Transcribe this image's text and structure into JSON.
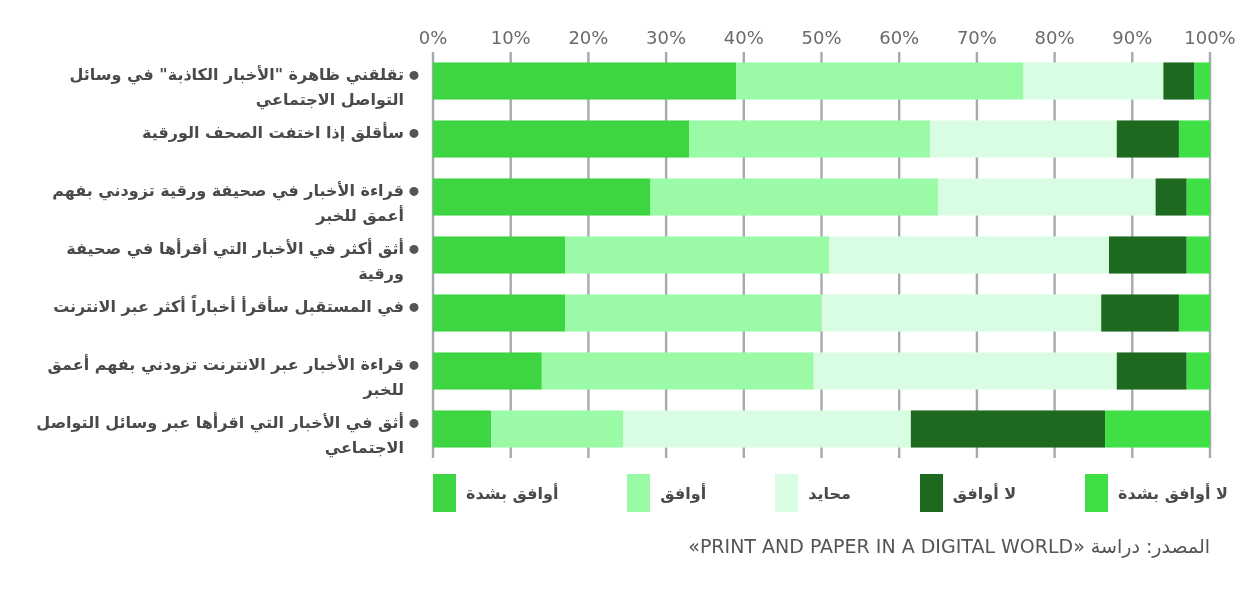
{
  "chart_data": {
    "type": "bar",
    "orientation": "horizontal",
    "stacked": true,
    "categories": [
      "تقلقني ظاهرة \"الأخبار الكاذبة\" في وسائل التواصل الاجتماعي",
      "سأقلق إذا اختفت الصحف الورقية",
      "قراءة الأخبار في صحيفة ورقية تزودني بفهم أعمق للخبر",
      "أثق أكثر في الأخبار التي أقرأها في صحيفة ورقية",
      "في المستقبل سأقرأ أخباراً أكثر عبر الانترنت",
      "قراءة الأخبار عبر الانترنت تزودني بفهم أعمق للخبر",
      "أثق في الأخبار التي اقرأها عبر وسائل التواصل الاجتماعي"
    ],
    "series": [
      {
        "name": "أوافق بشدة",
        "color": "#3dd642",
        "values": [
          39,
          33,
          28,
          17,
          17,
          14,
          7.5
        ]
      },
      {
        "name": "أوافق",
        "color": "#9afaa6",
        "values": [
          37,
          31,
          37,
          34,
          33,
          35,
          17
        ]
      },
      {
        "name": "محايد",
        "color": "#d9fde3",
        "values": [
          18,
          24,
          28,
          36,
          36,
          39,
          37
        ]
      },
      {
        "name": "لا أوافق",
        "color": "#1d6920",
        "values": [
          4,
          8,
          4,
          10,
          10,
          9,
          25
        ]
      },
      {
        "name": "لا أوافق بشدة",
        "color": "#40df46",
        "values": [
          2,
          4,
          3,
          3,
          4,
          3,
          13.5
        ]
      }
    ],
    "xlim": [
      0,
      100
    ],
    "xticks": [
      {
        "value": 0,
        "label": "0%"
      },
      {
        "value": 10,
        "label": "10%"
      },
      {
        "value": 20,
        "label": "20%"
      },
      {
        "value": 30,
        "label": "30%"
      },
      {
        "value": 40,
        "label": "40%"
      },
      {
        "value": 50,
        "label": "50%"
      },
      {
        "value": 60,
        "label": "60%"
      },
      {
        "value": 70,
        "label": "70%"
      },
      {
        "value": 80,
        "label": "80%"
      },
      {
        "value": 90,
        "label": "90%"
      },
      {
        "value": 100,
        "label": "100%"
      }
    ],
    "grid": "x",
    "legend": "bottom",
    "annotations": [
      "المصدر: دراسة «PRINT AND PAPER IN A DIGITAL WORLD»"
    ]
  }
}
